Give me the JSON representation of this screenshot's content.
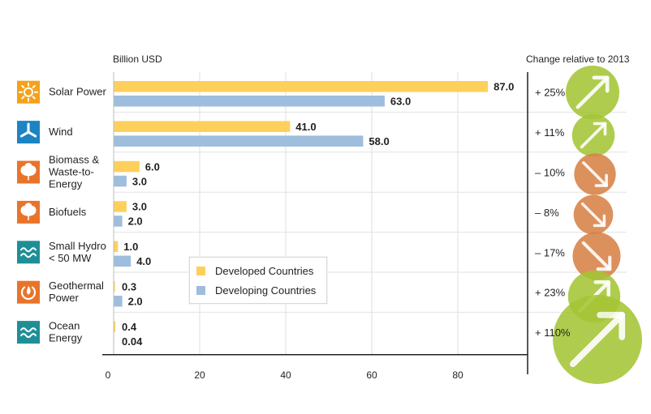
{
  "chart_data": {
    "type": "bar",
    "orientation": "horizontal",
    "unit_label": "Billion USD",
    "change_header": "Change relative to 2013",
    "categories": [
      {
        "label_lines": [
          "Solar Power"
        ],
        "icon": "sun-icon",
        "icon_color": "#f3a21b"
      },
      {
        "label_lines": [
          "Wind"
        ],
        "icon": "wind-turbine-icon",
        "icon_color": "#1d84c4"
      },
      {
        "label_lines": [
          "Biomass &",
          "Waste-to-",
          "Energy"
        ],
        "icon": "leaf-icon",
        "icon_color": "#e8742a"
      },
      {
        "label_lines": [
          "Biofuels"
        ],
        "icon": "leaf-icon",
        "icon_color": "#e8742a"
      },
      {
        "label_lines": [
          "Small Hydro",
          "< 50 MW"
        ],
        "icon": "waves-icon",
        "icon_color": "#1f8f97"
      },
      {
        "label_lines": [
          "Geothermal",
          "Power"
        ],
        "icon": "geothermal-icon",
        "icon_color": "#e8742a"
      },
      {
        "label_lines": [
          "Ocean",
          "Energy"
        ],
        "icon": "waves-icon",
        "icon_color": "#1f8f97"
      }
    ],
    "series": [
      {
        "name": "Developed Countries",
        "color": "#fdd05c",
        "values": [
          87.0,
          41.0,
          6.0,
          3.0,
          1.0,
          0.3,
          0.4
        ],
        "labels": [
          "87.0",
          "41.0",
          "6.0",
          "3.0",
          "1.0",
          "0.3",
          "0.4"
        ]
      },
      {
        "name": "Developing Countries",
        "color": "#9fbddc",
        "values": [
          63.0,
          58.0,
          3.0,
          2.0,
          4.0,
          2.0,
          0.04
        ],
        "labels": [
          "63.0",
          "58.0",
          "3.0",
          "2.0",
          "4.0",
          "2.0",
          "0.04"
        ]
      }
    ],
    "change": {
      "labels": [
        "+ 25%",
        "+ 11%",
        "– 10%",
        "– 8%",
        "– 17%",
        "+ 23%",
        "+ 110%"
      ],
      "values": [
        25,
        11,
        -10,
        -8,
        -17,
        23,
        110
      ],
      "increase_color": "#a5c536",
      "decrease_color": "#d88246"
    },
    "xlim": [
      0,
      95
    ],
    "xticks": [
      0,
      20,
      40,
      60,
      80
    ],
    "grid": true,
    "legend_placement": "center"
  }
}
